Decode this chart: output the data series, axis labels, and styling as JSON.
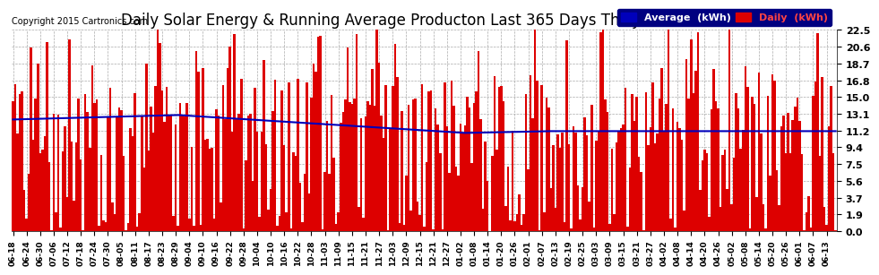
{
  "title": "Daily Solar Energy & Running Average Producton Last 365 Days Thu Jun 18 20:44",
  "copyright": "Copyright 2015 Cartronics.com",
  "legend_avg": "Average  (kWh)",
  "legend_daily": "Daily  (kWh)",
  "yticks": [
    0.0,
    1.9,
    3.7,
    5.6,
    7.5,
    9.4,
    11.2,
    13.1,
    15.0,
    16.8,
    18.7,
    20.6,
    22.5
  ],
  "ylim": [
    0.0,
    22.5
  ],
  "bar_color": "#dd0000",
  "avg_line_color": "#0000bb",
  "bg_color": "#ffffff",
  "plot_bg_color": "#ffffff",
  "grid_color": "#aaaaaa",
  "title_fontsize": 12,
  "num_bars": 365,
  "xtick_labels": [
    "06-18",
    "06-24",
    "06-30",
    "07-06",
    "07-12",
    "07-18",
    "07-24",
    "07-30",
    "08-05",
    "08-11",
    "08-17",
    "08-23",
    "08-29",
    "09-04",
    "09-10",
    "09-16",
    "09-22",
    "09-28",
    "10-04",
    "10-10",
    "10-16",
    "10-22",
    "10-28",
    "11-03",
    "11-09",
    "11-15",
    "11-21",
    "11-27",
    "12-03",
    "12-09",
    "12-15",
    "12-21",
    "12-27",
    "01-02",
    "01-08",
    "01-14",
    "01-20",
    "01-26",
    "02-01",
    "02-07",
    "02-13",
    "02-19",
    "02-25",
    "03-03",
    "03-09",
    "03-15",
    "03-21",
    "03-27",
    "04-02",
    "04-08",
    "04-14",
    "04-20",
    "04-26",
    "05-02",
    "05-08",
    "05-14",
    "05-20",
    "05-26",
    "06-01",
    "06-07",
    "06-13"
  ]
}
